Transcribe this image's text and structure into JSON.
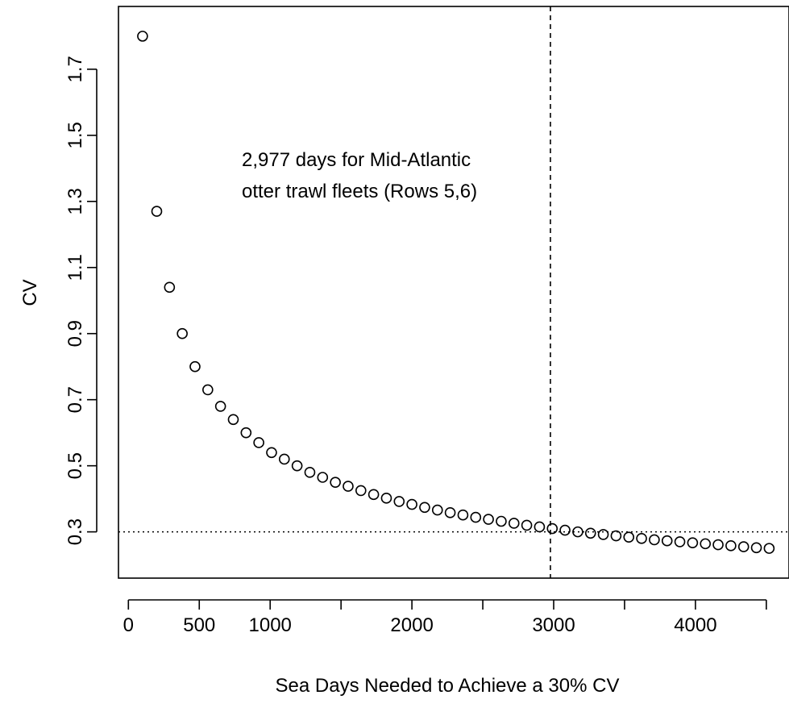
{
  "chart_data": {
    "type": "scatter",
    "title": "",
    "xlabel": "Sea Days Needed to Achieve a 30% CV",
    "ylabel": "CV",
    "xlim": [
      -70,
      4660
    ],
    "ylim": [
      0.16,
      1.89
    ],
    "x_ticks": [
      0,
      500,
      1000,
      2000,
      3000,
      4000
    ],
    "x_tick_labels": [
      "0",
      "500",
      "1000",
      "2000",
      "3000",
      "4000"
    ],
    "x_minor_ticks": [
      1500,
      2500,
      3500,
      4500
    ],
    "y_ticks": [
      0.3,
      0.5,
      0.7,
      0.9,
      1.1,
      1.3,
      1.5,
      1.7
    ],
    "y_tick_labels": [
      "0.3",
      "0.5",
      "0.7",
      "0.9",
      "1.1",
      "1.3",
      "1.5",
      "1.7"
    ],
    "reference_lines": [
      {
        "orientation": "vertical",
        "value": 2977,
        "style": "dashed"
      },
      {
        "orientation": "horizontal",
        "value": 0.3,
        "style": "dotted"
      }
    ],
    "annotation": {
      "lines": [
        "2,977 days for Mid-Atlantic",
        "otter trawl fleets (Rows 5,6)"
      ],
      "x": 800,
      "y": 1.53
    },
    "points": {
      "x": [
        100,
        200,
        290,
        380,
        470,
        560,
        650,
        740,
        830,
        920,
        1010,
        1100,
        1190,
        1280,
        1370,
        1460,
        1550,
        1640,
        1730,
        1820,
        1910,
        2000,
        2090,
        2180,
        2270,
        2360,
        2450,
        2540,
        2630,
        2720,
        2810,
        2900,
        2990,
        3080,
        3170,
        3260,
        3350,
        3440,
        3530,
        3620,
        3710,
        3800,
        3890,
        3980,
        4070,
        4160,
        4250,
        4340,
        4430,
        4520
      ],
      "y": [
        1.8,
        1.27,
        1.04,
        0.9,
        0.8,
        0.73,
        0.68,
        0.64,
        0.6,
        0.57,
        0.54,
        0.52,
        0.5,
        0.48,
        0.465,
        0.45,
        0.438,
        0.425,
        0.413,
        0.402,
        0.392,
        0.383,
        0.374,
        0.366,
        0.358,
        0.351,
        0.344,
        0.338,
        0.332,
        0.326,
        0.32,
        0.315,
        0.31,
        0.305,
        0.3,
        0.296,
        0.292,
        0.288,
        0.284,
        0.28,
        0.276,
        0.273,
        0.27,
        0.267,
        0.264,
        0.261,
        0.258,
        0.255,
        0.252,
        0.25
      ]
    }
  }
}
